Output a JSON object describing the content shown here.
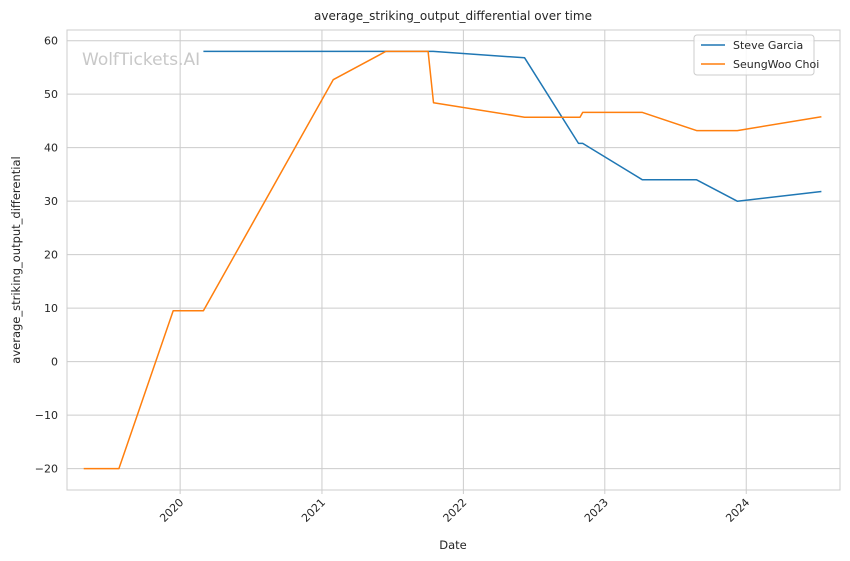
{
  "chart_data": {
    "type": "line",
    "title": "average_striking_output_differential over time",
    "xlabel": "Date",
    "ylabel": "average_striking_output_differential",
    "watermark": "WolfTickets.AI",
    "x_ticks": [
      "2020",
      "2021",
      "2022",
      "2023",
      "2024"
    ],
    "y_ticks": [
      -20,
      -10,
      0,
      10,
      20,
      30,
      40,
      50,
      60
    ],
    "ylim": [
      -24,
      62
    ],
    "xlim": [
      "2019-03-15",
      "2024-08-30"
    ],
    "grid": true,
    "legend_position": "top-right",
    "series": [
      {
        "name": "Steve Garcia",
        "color": "#1f77b4",
        "points": [
          [
            "2020-03-01",
            58
          ],
          [
            "2021-06-15",
            58
          ],
          [
            "2021-10-15",
            58
          ],
          [
            "2022-06-08",
            56.8
          ],
          [
            "2022-10-25",
            40.8
          ],
          [
            "2022-11-05",
            40.8
          ],
          [
            "2023-04-08",
            34
          ],
          [
            "2023-08-26",
            34
          ],
          [
            "2023-12-09",
            30
          ],
          [
            "2024-07-13",
            31.8
          ]
        ]
      },
      {
        "name": "SeungWoo Choi",
        "color": "#ff7f0e",
        "points": [
          [
            "2019-04-27",
            -20
          ],
          [
            "2019-07-27",
            -20
          ],
          [
            "2019-12-14",
            9.5
          ],
          [
            "2020-03-01",
            9.5
          ],
          [
            "2021-01-30",
            52.7
          ],
          [
            "2021-06-15",
            58
          ],
          [
            "2021-10-02",
            58
          ],
          [
            "2021-10-16",
            48.4
          ],
          [
            "2022-06-08",
            45.7
          ],
          [
            "2022-10-29",
            45.7
          ],
          [
            "2022-11-05",
            46.6
          ],
          [
            "2023-04-08",
            46.6
          ],
          [
            "2023-08-26",
            43.2
          ],
          [
            "2023-12-09",
            43.2
          ],
          [
            "2024-07-13",
            45.8
          ]
        ]
      }
    ]
  }
}
